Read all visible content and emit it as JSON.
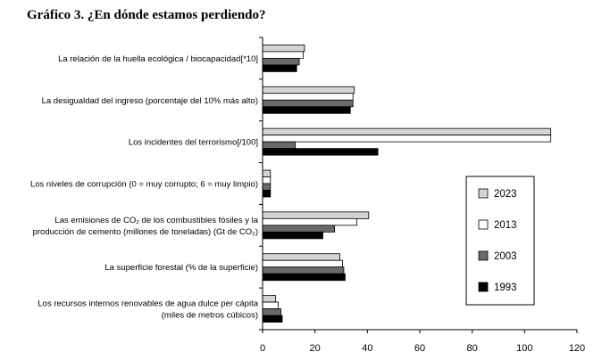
{
  "title": "Gráfico 3. ¿En dónde estamos perdiendo?",
  "chart_data": {
    "type": "bar",
    "orientation": "horizontal",
    "categories": [
      [
        "La relación de la huella ecológica / biocapacidad[*10]"
      ],
      [
        "La desigualdad del ingreso (porcentaje del 10% más alto)"
      ],
      [
        "Los incidentes del terrorismo[/100]"
      ],
      [
        "Los niveles de corrupción (0 = muy corrupto; 6 = muy limpio)"
      ],
      [
        "Las emisiones de CO₂ de los combustibles fósiles y la",
        "producción de cemento (millones de toneladas) (Gt de CO₂)"
      ],
      [
        "La superficie forestal (% de la superficie)"
      ],
      [
        "Los recursos internos renovables de agua dulce per cápita",
        "(miles de metros cúbicos)"
      ]
    ],
    "series": [
      {
        "name": "2023",
        "color": "#d4d4d4",
        "values": [
          16,
          35,
          110,
          3,
          40.5,
          29.5,
          5
        ]
      },
      {
        "name": "2013",
        "color": "#ffffff",
        "values": [
          15.5,
          34.5,
          110,
          3,
          36,
          30.5,
          6
        ]
      },
      {
        "name": "2003",
        "color": "#6a6a6a",
        "values": [
          14,
          34.5,
          12.5,
          3,
          27.5,
          31,
          7
        ]
      },
      {
        "name": "1993",
        "color": "#000000",
        "values": [
          13,
          33.5,
          44,
          3,
          23,
          31.5,
          7.5
        ]
      }
    ],
    "xlim": [
      0,
      120
    ],
    "xticks": [
      0,
      20,
      40,
      60,
      80,
      100,
      120
    ],
    "legend_position": "right"
  }
}
